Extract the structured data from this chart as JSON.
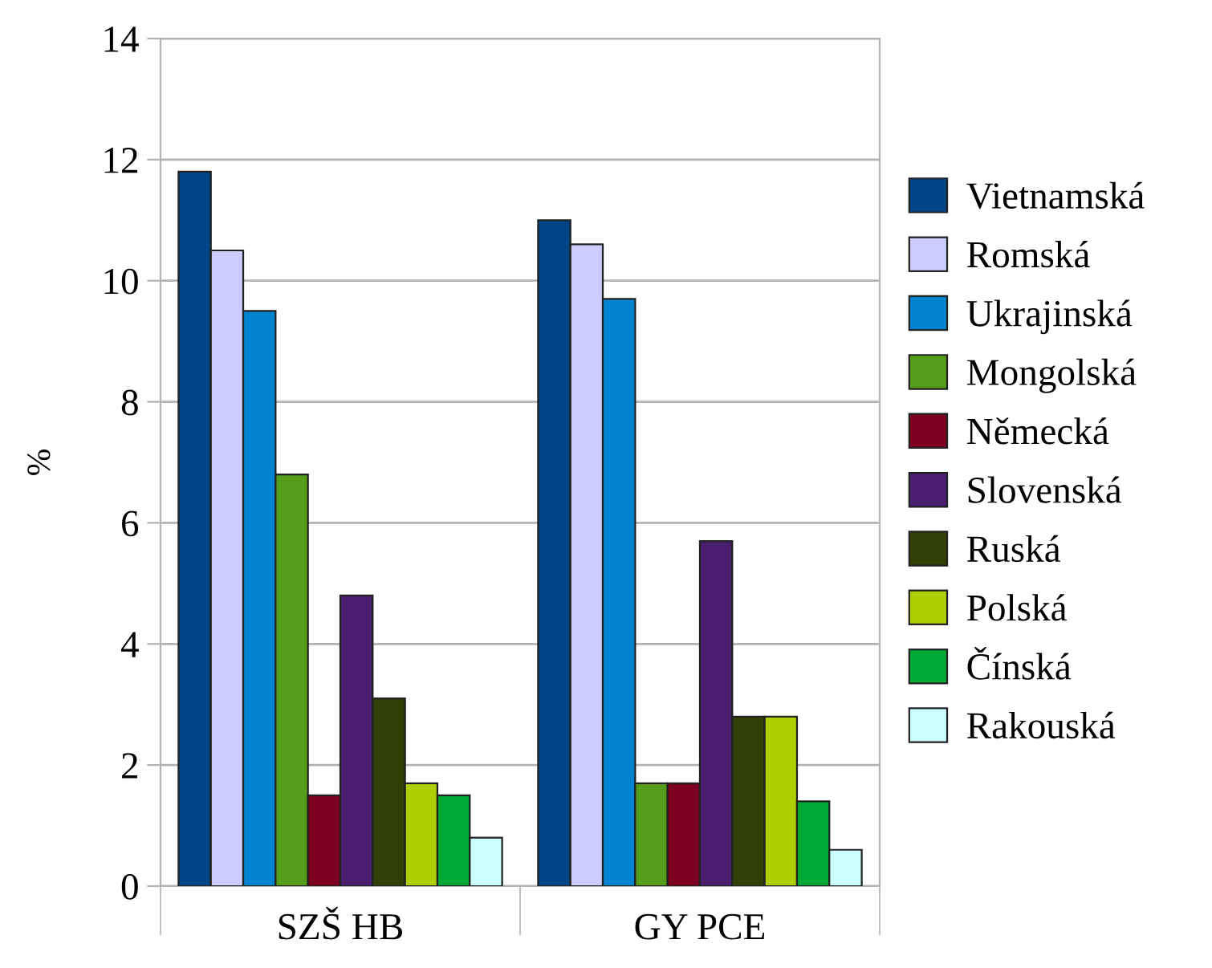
{
  "chart_data": {
    "type": "bar",
    "ylabel": "%",
    "categories": [
      "SZŠ HB",
      "GY PCE"
    ],
    "ylim": [
      0,
      14
    ],
    "yticks": [
      0,
      2,
      4,
      6,
      8,
      10,
      12,
      14
    ],
    "grid": "y",
    "legend": "right",
    "series": [
      {
        "name": "Vietnamská",
        "color": "#004586",
        "values": [
          11.8,
          11.0
        ]
      },
      {
        "name": "Romská",
        "color": "#ccccff",
        "values": [
          10.5,
          10.6
        ]
      },
      {
        "name": "Ukrajinská",
        "color": "#0084d1",
        "values": [
          9.5,
          9.7
        ]
      },
      {
        "name": "Mongolská",
        "color": "#579d1c",
        "values": [
          6.8,
          1.7
        ]
      },
      {
        "name": "Německá",
        "color": "#7e0021",
        "values": [
          1.5,
          1.7
        ]
      },
      {
        "name": "Slovenská",
        "color": "#4b1f6f",
        "values": [
          4.8,
          5.7
        ]
      },
      {
        "name": "Ruská",
        "color": "#314004",
        "values": [
          3.1,
          2.8
        ]
      },
      {
        "name": "Polská",
        "color": "#aecf00",
        "values": [
          1.7,
          2.8
        ]
      },
      {
        "name": "Čínská",
        "color": "#00a933",
        "values": [
          1.5,
          1.4
        ]
      },
      {
        "name": "Rakouská",
        "color": "#ccffff",
        "values": [
          0.8,
          0.6
        ]
      }
    ]
  }
}
